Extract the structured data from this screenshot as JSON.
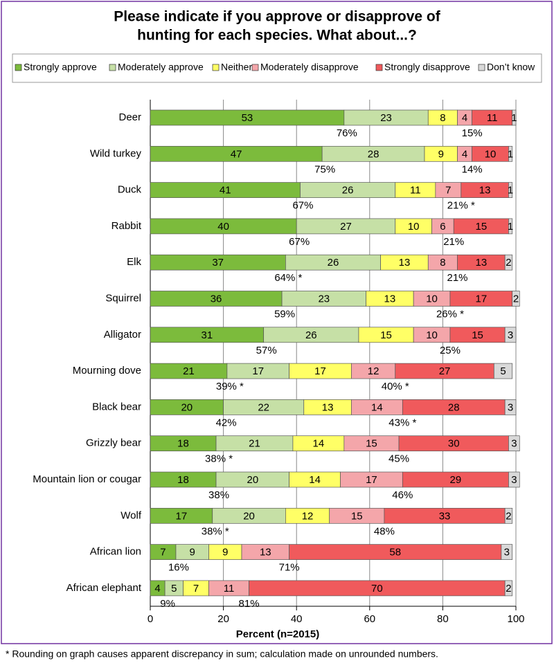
{
  "chart_data": {
    "type": "stacked-bar-horizontal",
    "title": [
      "Please indicate if you approve or disapprove of",
      "hunting for each species. What about...?"
    ],
    "xlabel": "Percent (n=2015)",
    "footnote": "* Rounding on graph causes apparent discrepancy in sum; calculation made on unrounded numbers.",
    "categories": [
      "Deer",
      "Wild turkey",
      "Duck",
      "Rabbit",
      "Elk",
      "Squirrel",
      "Alligator",
      "Mourning dove",
      "Black bear",
      "Grizzly bear",
      "Mountain lion or cougar",
      "Wolf",
      "African lion",
      "African elephant"
    ],
    "series": [
      {
        "name": "Strongly approve",
        "color": "#7cbb3c",
        "values": [
          53,
          47,
          41,
          40,
          37,
          36,
          31,
          21,
          20,
          18,
          18,
          17,
          7,
          4
        ]
      },
      {
        "name": "Moderately approve",
        "color": "#c6e0a6",
        "values": [
          23,
          28,
          26,
          27,
          26,
          23,
          26,
          17,
          22,
          21,
          20,
          20,
          9,
          5
        ]
      },
      {
        "name": "Neither",
        "color": "#ffff66",
        "values": [
          8,
          9,
          11,
          10,
          13,
          13,
          15,
          17,
          13,
          14,
          14,
          12,
          9,
          7
        ]
      },
      {
        "name": "Moderately disapprove",
        "color": "#f4a6aa",
        "values": [
          4,
          4,
          7,
          6,
          8,
          10,
          10,
          12,
          14,
          15,
          17,
          15,
          13,
          11
        ]
      },
      {
        "name": "Strongly disapprove",
        "color": "#f05a5c",
        "values": [
          11,
          10,
          13,
          15,
          13,
          17,
          15,
          27,
          28,
          30,
          29,
          33,
          58,
          70
        ]
      },
      {
        "name": "Don’t know",
        "color": "#d9d9d9",
        "values": [
          1,
          1,
          1,
          1,
          2,
          2,
          3,
          5,
          3,
          3,
          3,
          2,
          3,
          2
        ]
      }
    ],
    "approve_total": {
      "values": [
        76,
        75,
        67,
        67,
        64,
        59,
        57,
        39,
        42,
        38,
        38,
        38,
        16,
        9
      ],
      "value_labels": [
        "76%",
        "75%",
        "67%",
        "67%",
        "64% *",
        "59%",
        "57%",
        "39% *",
        "42%",
        "38% *",
        "38%",
        "38% *",
        "16%",
        "9%"
      ]
    },
    "disapprove_total": {
      "values": [
        15,
        14,
        21,
        21,
        21,
        26,
        25,
        40,
        43,
        45,
        46,
        48,
        71,
        81
      ],
      "value_labels": [
        "15%",
        "14%",
        "21% *",
        "21%",
        "21%",
        "26% *",
        "25%",
        "40% *",
        "43% *",
        "45%",
        "46%",
        "48%",
        "71%",
        "81%"
      ]
    },
    "xlim": [
      0,
      100
    ],
    "xticks": [
      0,
      20,
      40,
      60,
      80,
      100
    ],
    "grid": true
  }
}
